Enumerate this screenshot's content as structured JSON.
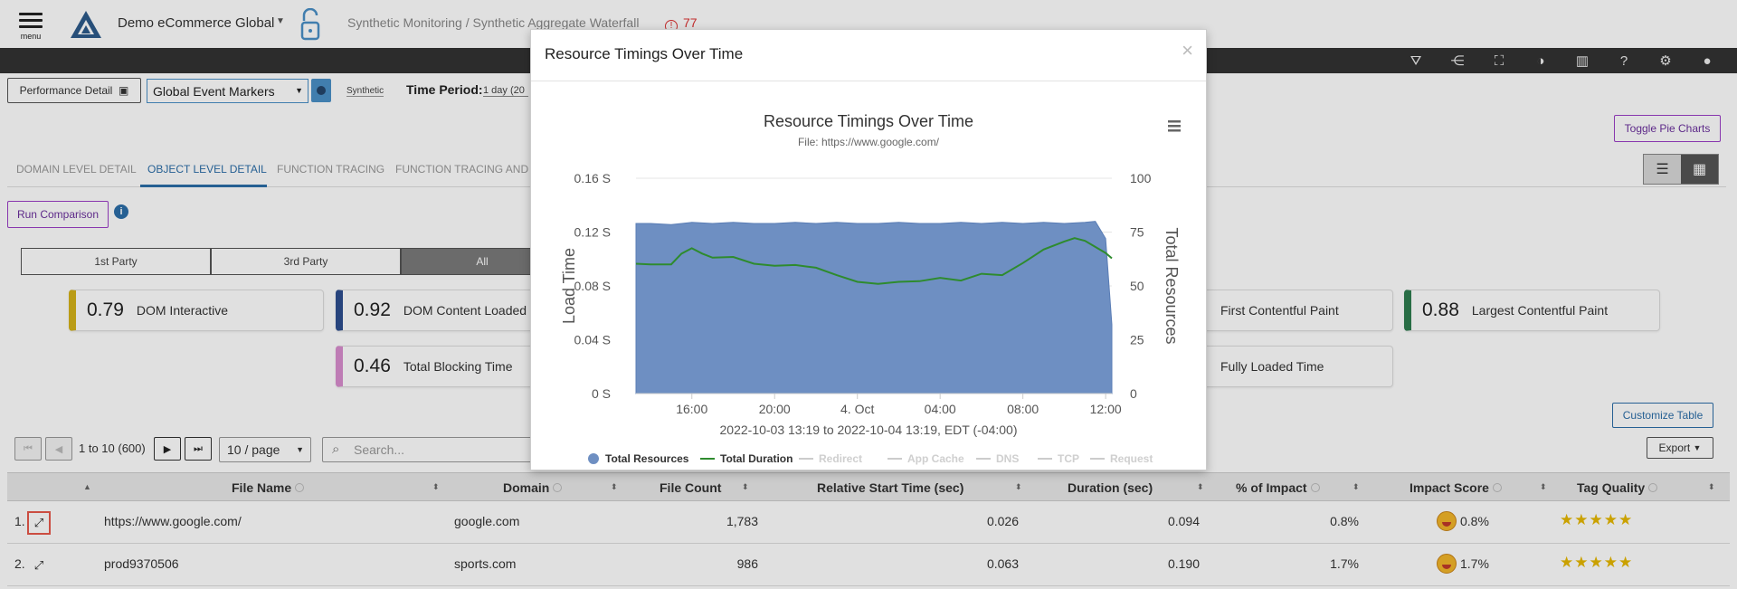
{
  "header": {
    "menu_label": "menu",
    "org_name": "Demo eCommerce Global",
    "breadcrumb": "Synthetic Monitoring / Synthetic Aggregate Waterfall",
    "alert_count": "77"
  },
  "toolbar": {
    "performance_detail": "Performance Detail",
    "event_markers": "Global Event Markers",
    "synthetic_label": "Synthetic",
    "time_period_label": "Time Period:",
    "time_period_value": "1 day (20"
  },
  "tabs": [
    "DOMAIN LEVEL DETAIL",
    "OBJECT LEVEL DETAIL",
    "FUNCTION TRACING",
    "FUNCTION TRACING AND O"
  ],
  "run_comparison": "Run Comparison",
  "party_filter": [
    "1st Party",
    "3rd Party",
    "All"
  ],
  "metrics": [
    {
      "value": "0.79",
      "name": "DOM Interactive",
      "color": "#d4b21a"
    },
    {
      "value": "0.92",
      "name": "DOM Content Loaded",
      "color": "#2d4e8f"
    },
    {
      "value": "0.46",
      "name": "Total Blocking Time",
      "color": "#d98ecf"
    },
    {
      "value": "",
      "name": "First Contentful Paint",
      "color": "#e6e6e6"
    },
    {
      "value": "0.88",
      "name": "Largest Contentful Paint",
      "color": "#2e7d4f"
    },
    {
      "value": "",
      "name": "Fully Loaded Time",
      "color": "#e6e6e6"
    }
  ],
  "side_buttons": {
    "toggle_pie": "Toggle Pie Charts",
    "customize_table": "Customize Table",
    "export": "Export"
  },
  "pager": {
    "range": "1 to 10 (600)",
    "per_page": "10 / page",
    "search_placeholder": "Search..."
  },
  "table": {
    "columns": [
      "File Name",
      "Domain",
      "File Count",
      "Relative Start Time (sec)",
      "Duration (sec)",
      "% of Impact",
      "Impact Score",
      "Tag Quality"
    ],
    "rows": [
      {
        "idx": "1.",
        "file": "https://www.google.com/",
        "domain": "google.com",
        "count": "1,783",
        "start": "0.026",
        "duration": "0.094",
        "impact": "0.8%",
        "score": "0.8%",
        "stars": "★★★★★"
      },
      {
        "idx": "2.",
        "file": "prod9370506",
        "domain": "sports.com",
        "count": "986",
        "start": "0.063",
        "duration": "0.190",
        "impact": "1.7%",
        "score": "1.7%",
        "stars": "★★★★★"
      }
    ]
  },
  "modal": {
    "title": "Resource Timings Over Time",
    "close": "×"
  },
  "chart_data": {
    "type": "area",
    "title": "Resource Timings Over Time",
    "subtitle": "File: https://www.google.com/",
    "xlabel": "2022-10-03 13:19 to 2022-10-04 13:19, EDT (-04:00)",
    "ylabel_left": "Load Time",
    "ylabel_right": "Total Resources",
    "y_left_ticks": [
      "0 S",
      "0.04 S",
      "0.08 S",
      "0.12 S",
      "0.16 S"
    ],
    "y_right_ticks": [
      "0",
      "25",
      "50",
      "75",
      "100"
    ],
    "ylim_left": [
      0,
      0.16
    ],
    "ylim_right": [
      0,
      100
    ],
    "xlim": [
      13.3,
      36.3
    ],
    "x_ticks": [
      {
        "x": 16,
        "label": "16:00"
      },
      {
        "x": 20,
        "label": "20:00"
      },
      {
        "x": 24,
        "label": "4. Oct"
      },
      {
        "x": 28,
        "label": "04:00"
      },
      {
        "x": 32,
        "label": "08:00"
      },
      {
        "x": 36,
        "label": "12:00"
      }
    ],
    "series": [
      {
        "name": "Total Resources",
        "axis": "right",
        "kind": "area",
        "color": "#6e8fc2",
        "x": [
          13.3,
          14,
          15,
          16,
          17,
          18,
          19,
          20,
          21,
          22,
          23,
          24,
          25,
          26,
          27,
          28,
          29,
          30,
          31,
          32,
          33,
          34,
          35,
          35.5,
          36,
          36.3
        ],
        "values": [
          79,
          79,
          78.5,
          79.5,
          79,
          79.5,
          79,
          79,
          79.5,
          79,
          79.5,
          79,
          79,
          79.5,
          79,
          79,
          79.5,
          79,
          79.5,
          79,
          79.5,
          79,
          79.5,
          80,
          72,
          32
        ]
      },
      {
        "name": "Total Duration",
        "axis": "left",
        "kind": "line",
        "color": "#2e8b2e",
        "x": [
          13.3,
          14,
          15,
          15.5,
          16,
          16.5,
          17,
          18,
          19,
          20,
          21,
          22,
          23,
          24,
          25,
          26,
          27,
          28,
          29,
          30,
          31,
          32,
          33,
          34,
          34.5,
          35,
          36,
          36.3
        ],
        "values": [
          0.0965,
          0.096,
          0.096,
          0.104,
          0.108,
          0.104,
          0.101,
          0.1015,
          0.0965,
          0.095,
          0.0955,
          0.0935,
          0.088,
          0.083,
          0.0815,
          0.083,
          0.0835,
          0.086,
          0.084,
          0.089,
          0.088,
          0.097,
          0.107,
          0.113,
          0.1155,
          0.1135,
          0.1045,
          0.1005
        ]
      }
    ],
    "legend": [
      {
        "name": "Total Resources",
        "marker": "circle",
        "active": true,
        "color": "#6e8fc2"
      },
      {
        "name": "Total Duration",
        "marker": "line",
        "active": true,
        "color": "#2e8b2e"
      },
      {
        "name": "Redirect",
        "marker": "line",
        "active": false,
        "color": "#cccccc"
      },
      {
        "name": "App Cache",
        "marker": "line",
        "active": false,
        "color": "#cccccc"
      },
      {
        "name": "DNS",
        "marker": "line",
        "active": false,
        "color": "#cccccc"
      },
      {
        "name": "TCP",
        "marker": "line",
        "active": false,
        "color": "#cccccc"
      },
      {
        "name": "Request",
        "marker": "line",
        "active": false,
        "color": "#cccccc"
      }
    ]
  }
}
